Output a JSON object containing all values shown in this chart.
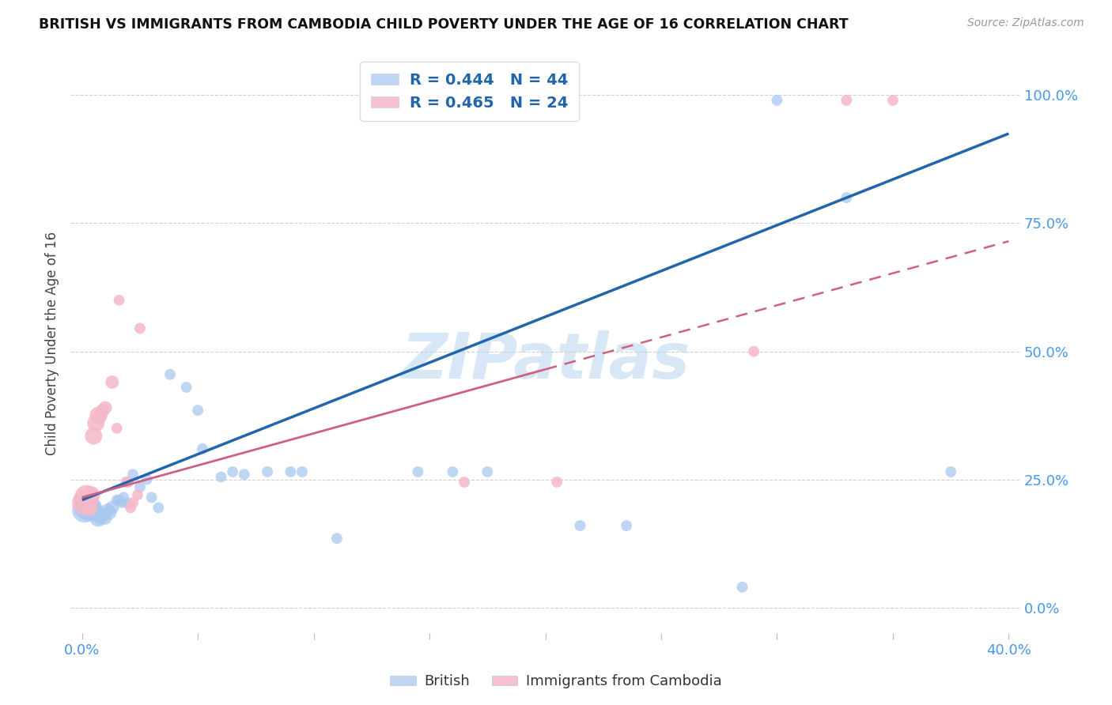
{
  "title": "BRITISH VS IMMIGRANTS FROM CAMBODIA CHILD POVERTY UNDER THE AGE OF 16 CORRELATION CHART",
  "source": "Source: ZipAtlas.com",
  "ylabel": "Child Poverty Under the Age of 16",
  "ytick_labels": [
    "0.0%",
    "25.0%",
    "50.0%",
    "75.0%",
    "100.0%"
  ],
  "ytick_values": [
    0.0,
    0.25,
    0.5,
    0.75,
    1.0
  ],
  "xtick_values": [
    0.0,
    0.05,
    0.1,
    0.15,
    0.2,
    0.25,
    0.3,
    0.35,
    0.4
  ],
  "xlim": [
    -0.005,
    0.405
  ],
  "ylim": [
    -0.05,
    1.08
  ],
  "watermark": "ZIPatlas",
  "legend_british_R": "R = 0.444",
  "legend_british_N": "N = 44",
  "legend_cambodia_R": "R = 0.465",
  "legend_cambodia_N": "N = 24",
  "british_color": "#a8c8f0",
  "cambodia_color": "#f5b8c8",
  "british_line_color": "#2166ac",
  "cambodia_line_color": "#d06080",
  "british_scatter": [
    [
      0.001,
      0.19
    ],
    [
      0.002,
      0.195
    ],
    [
      0.003,
      0.2
    ],
    [
      0.003,
      0.185
    ],
    [
      0.004,
      0.2
    ],
    [
      0.005,
      0.195
    ],
    [
      0.006,
      0.185
    ],
    [
      0.007,
      0.175
    ],
    [
      0.008,
      0.175
    ],
    [
      0.009,
      0.18
    ],
    [
      0.01,
      0.175
    ],
    [
      0.011,
      0.19
    ],
    [
      0.012,
      0.185
    ],
    [
      0.013,
      0.195
    ],
    [
      0.015,
      0.21
    ],
    [
      0.016,
      0.21
    ],
    [
      0.017,
      0.205
    ],
    [
      0.018,
      0.215
    ],
    [
      0.019,
      0.205
    ],
    [
      0.022,
      0.26
    ],
    [
      0.025,
      0.235
    ],
    [
      0.028,
      0.25
    ],
    [
      0.03,
      0.215
    ],
    [
      0.033,
      0.195
    ],
    [
      0.038,
      0.455
    ],
    [
      0.045,
      0.43
    ],
    [
      0.05,
      0.385
    ],
    [
      0.052,
      0.31
    ],
    [
      0.06,
      0.255
    ],
    [
      0.065,
      0.265
    ],
    [
      0.07,
      0.26
    ],
    [
      0.08,
      0.265
    ],
    [
      0.09,
      0.265
    ],
    [
      0.095,
      0.265
    ],
    [
      0.11,
      0.135
    ],
    [
      0.145,
      0.265
    ],
    [
      0.16,
      0.265
    ],
    [
      0.175,
      0.265
    ],
    [
      0.215,
      0.16
    ],
    [
      0.235,
      0.16
    ],
    [
      0.285,
      0.04
    ],
    [
      0.33,
      0.8
    ],
    [
      0.375,
      0.265
    ],
    [
      0.3,
      0.99
    ]
  ],
  "cambodia_scatter": [
    [
      0.001,
      0.205
    ],
    [
      0.002,
      0.215
    ],
    [
      0.003,
      0.195
    ],
    [
      0.004,
      0.22
    ],
    [
      0.005,
      0.335
    ],
    [
      0.006,
      0.36
    ],
    [
      0.007,
      0.375
    ],
    [
      0.008,
      0.375
    ],
    [
      0.009,
      0.385
    ],
    [
      0.01,
      0.39
    ],
    [
      0.013,
      0.44
    ],
    [
      0.015,
      0.35
    ],
    [
      0.016,
      0.6
    ],
    [
      0.019,
      0.245
    ],
    [
      0.02,
      0.245
    ],
    [
      0.021,
      0.195
    ],
    [
      0.022,
      0.205
    ],
    [
      0.024,
      0.22
    ],
    [
      0.025,
      0.545
    ],
    [
      0.165,
      0.245
    ],
    [
      0.205,
      0.245
    ],
    [
      0.29,
      0.5
    ],
    [
      0.33,
      0.99
    ],
    [
      0.35,
      0.99
    ]
  ],
  "british_trendline": [
    [
      0.0,
      0.21
    ],
    [
      0.4,
      0.925
    ]
  ],
  "cambodia_trendline_solid": [
    [
      0.0,
      0.215
    ],
    [
      0.2,
      0.465
    ]
  ],
  "cambodia_trendline_dashed": [
    [
      0.2,
      0.465
    ],
    [
      0.4,
      0.715
    ]
  ]
}
